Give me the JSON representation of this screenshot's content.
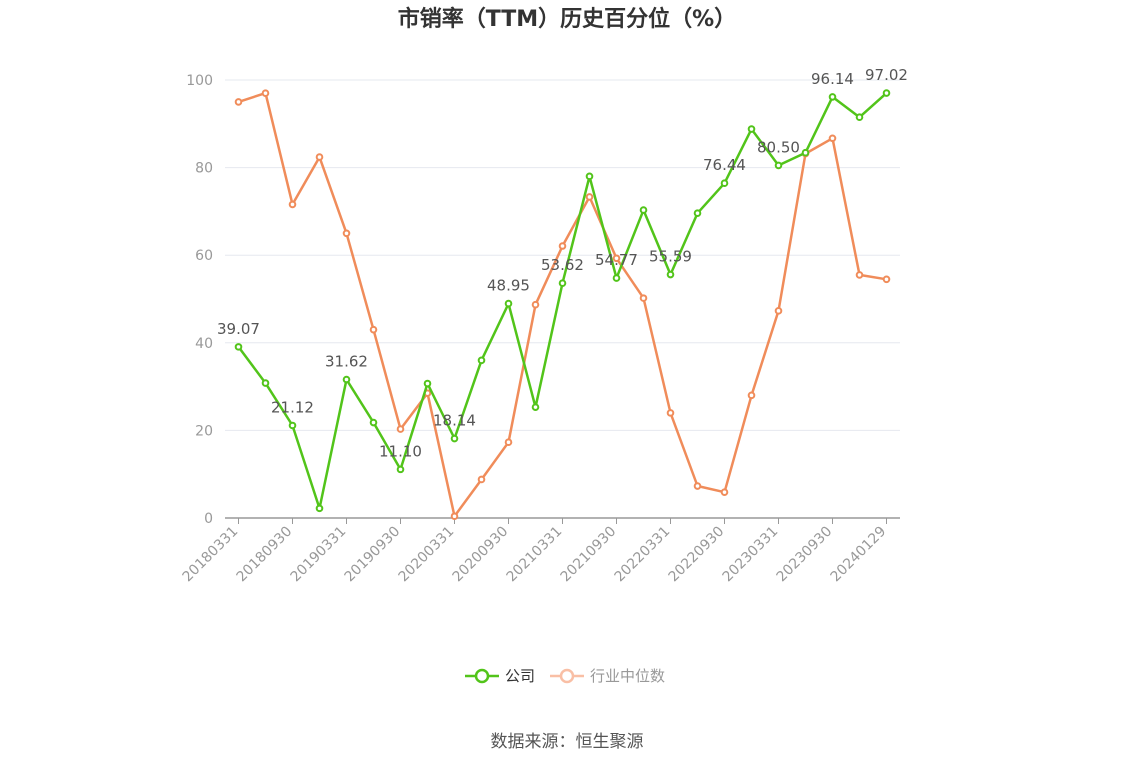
{
  "chart_data": {
    "type": "line",
    "title": "市销率（TTM）历史百分位（%）",
    "x_tick_labels": [
      "20180331",
      "20180930",
      "20190331",
      "20190930",
      "20200331",
      "20200930",
      "20210331",
      "20210930",
      "20220331",
      "20220930",
      "20230331",
      "20230930",
      "20240129"
    ],
    "ylim": [
      0,
      100
    ],
    "y_ticks": [
      0,
      20,
      40,
      60,
      80,
      100
    ],
    "grid": true,
    "legend_position": "bottom-center",
    "series": [
      {
        "name": "公司",
        "color": "#52c41a",
        "values": [
          39.07,
          30.8,
          21.12,
          2.2,
          31.62,
          21.8,
          11.1,
          30.7,
          18.14,
          36.0,
          48.95,
          25.3,
          53.62,
          78.0,
          54.77,
          70.3,
          55.59,
          69.6,
          76.44,
          88.8,
          80.5,
          83.4,
          96.14,
          91.5,
          97.02
        ],
        "labels": {
          "0": "39.07",
          "2": "21.12",
          "4": "31.62",
          "6": "11.10",
          "8": "18.14",
          "10": "48.95",
          "12": "53.62",
          "14": "54.77",
          "16": "55.59",
          "18": "76.44",
          "20": "80.50",
          "22": "96.14",
          "24": "97.02"
        }
      },
      {
        "name": "行业中位数",
        "color": "#f08c5a",
        "values": [
          95.0,
          97.0,
          71.6,
          82.4,
          65.0,
          43.0,
          20.3,
          28.5,
          0.4,
          8.8,
          17.3,
          48.7,
          62.1,
          73.3,
          59.3,
          50.2,
          24.0,
          7.3,
          5.9,
          28.0,
          47.3,
          83.2,
          86.7,
          55.5,
          54.5
        ]
      }
    ],
    "source": "数据来源：恒生聚源"
  }
}
